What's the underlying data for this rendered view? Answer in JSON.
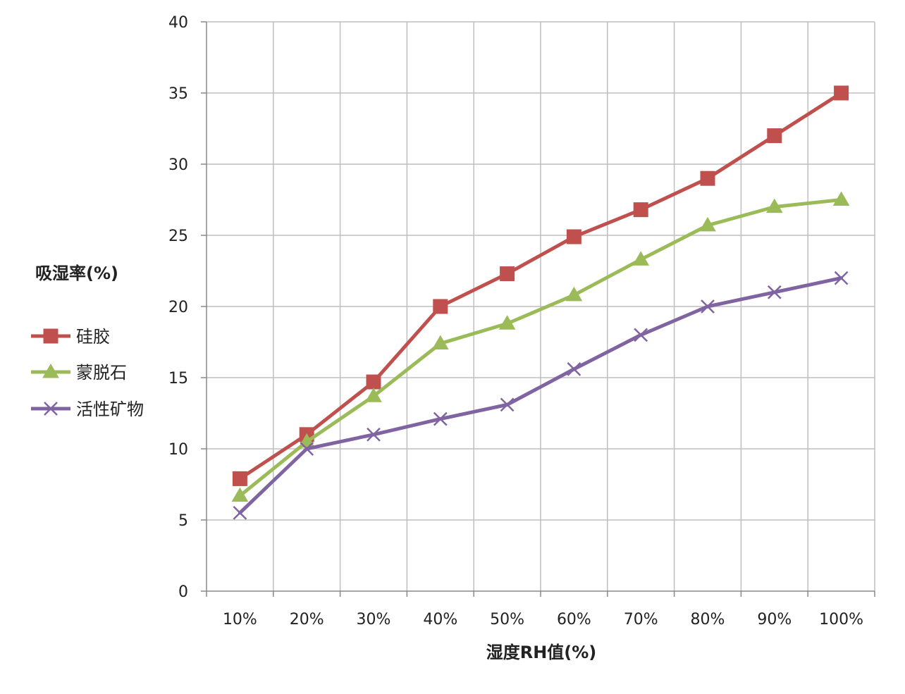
{
  "chart_data": {
    "type": "line",
    "title": "",
    "xlabel": "湿度RH值(%)",
    "ylabel": "吸湿率(%)",
    "categories": [
      "10%",
      "20%",
      "30%",
      "40%",
      "50%",
      "60%",
      "70%",
      "80%",
      "90%",
      "100%"
    ],
    "ylim": [
      0,
      40
    ],
    "yticks": [
      0,
      5,
      10,
      15,
      20,
      25,
      30,
      35,
      40
    ],
    "grid": true,
    "legend_position": "left",
    "series": [
      {
        "name": "硅胶",
        "color": "#c0504d",
        "marker": "square",
        "values": [
          7.9,
          11,
          14.7,
          20,
          22.3,
          24.9,
          26.8,
          29,
          32,
          35
        ]
      },
      {
        "name": "蒙脱石",
        "color": "#9bbb59",
        "marker": "triangle",
        "values": [
          6.7,
          10.5,
          13.7,
          17.4,
          18.8,
          20.8,
          23.3,
          25.7,
          27,
          27.5
        ]
      },
      {
        "name": "活性矿物",
        "color": "#8064a2",
        "marker": "x",
        "values": [
          5.5,
          10,
          11,
          12.1,
          13.1,
          15.6,
          18,
          20,
          21,
          22
        ]
      }
    ]
  }
}
